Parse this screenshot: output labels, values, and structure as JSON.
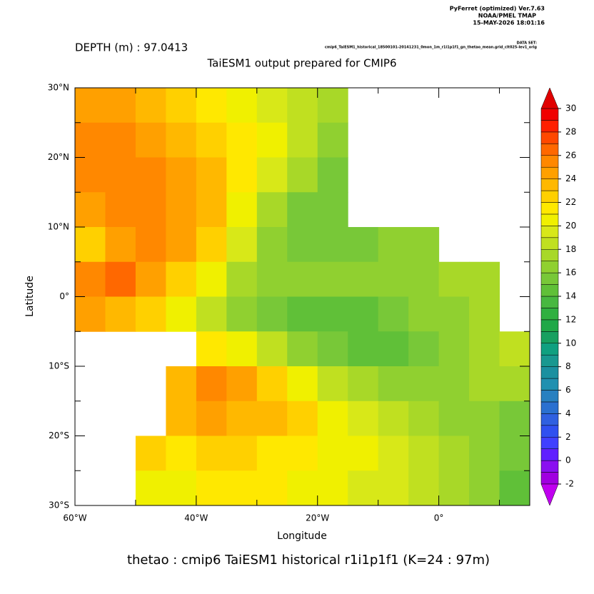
{
  "chart_data": {
    "type": "heatmap",
    "header": [
      "PyFerret (optimized) Ver.7.63",
      "NOAA/PMEL TMAP",
      "15-MAY-2026 18:01:16"
    ],
    "dataset_label": "DATA SET:",
    "dataset": "cmip6_TaiESM1_historical_18500101-20141231_0mon_1m_r1i1p1f1_gn_thetao_mean.grid_clt025-lev1_orig",
    "depth": "DEPTH (m) : 97.0413",
    "title": "TaiESM1 output prepared for CMIP6",
    "xlabel": "Longitude",
    "ylabel": "Latitude",
    "caption": "thetao : cmip6 TaiESM1 historical r1i1p1f1   (K=24 : 97m)",
    "xlim": [
      -60,
      15
    ],
    "ylim": [
      -30,
      30
    ],
    "xticks": [
      {
        "value": -60,
        "label": "60°W"
      },
      {
        "value": -40,
        "label": "40°W"
      },
      {
        "value": -20,
        "label": "20°W"
      },
      {
        "value": 0,
        "label": "0°"
      }
    ],
    "xminor": [
      -50,
      -30,
      -10,
      10
    ],
    "yticks": [
      {
        "value": -30,
        "label": "30°S"
      },
      {
        "value": -20,
        "label": "20°S"
      },
      {
        "value": -10,
        "label": "10°S"
      },
      {
        "value": 0,
        "label": "0°"
      },
      {
        "value": 10,
        "label": "10°N"
      },
      {
        "value": 20,
        "label": "20°N"
      },
      {
        "value": 30,
        "label": "30°N"
      }
    ],
    "yminor": [
      -25,
      -15,
      -5,
      5,
      15,
      25
    ],
    "lons": [
      -57.5,
      -52.5,
      -47.5,
      -42.5,
      -37.5,
      -32.5,
      -27.5,
      -22.5,
      -17.5,
      -12.5,
      -7.5,
      -2.5,
      2.5,
      7.5,
      12.5
    ],
    "lats": [
      27.5,
      22.5,
      17.5,
      12.5,
      7.5,
      2.5,
      -2.5,
      -7.5,
      -12.5,
      -17.5,
      -22.5,
      -27.5
    ],
    "values": [
      [
        24,
        24,
        23,
        22,
        21,
        20,
        19,
        18,
        17,
        null,
        null,
        null,
        null,
        null,
        null
      ],
      [
        25,
        25,
        24,
        23,
        22,
        21,
        20,
        18,
        16,
        null,
        null,
        null,
        null,
        null,
        null
      ],
      [
        25,
        25,
        25,
        24,
        23,
        21,
        19,
        17,
        15,
        null,
        null,
        null,
        null,
        null,
        null
      ],
      [
        24,
        25,
        25,
        24,
        23,
        20,
        17,
        15,
        15,
        null,
        null,
        null,
        null,
        null,
        null
      ],
      [
        22,
        24,
        25,
        24,
        22,
        19,
        16,
        15,
        15,
        15,
        16,
        16,
        null,
        null,
        null
      ],
      [
        25,
        26,
        24,
        22,
        20,
        17,
        16,
        16,
        16,
        16,
        16,
        16,
        17,
        17,
        null
      ],
      [
        24,
        23,
        22,
        20,
        18,
        16,
        15,
        14,
        14,
        14,
        15,
        16,
        16,
        17,
        null
      ],
      [
        null,
        null,
        null,
        null,
        21,
        20,
        18,
        16,
        15,
        14,
        14,
        15,
        16,
        17,
        18
      ],
      [
        null,
        null,
        null,
        23,
        25,
        24,
        22,
        20,
        18,
        17,
        16,
        16,
        16,
        17,
        17
      ],
      [
        null,
        null,
        null,
        23,
        24,
        23,
        23,
        22,
        20,
        19,
        18,
        17,
        16,
        16,
        15
      ],
      [
        null,
        null,
        22,
        21,
        22,
        22,
        21,
        21,
        20,
        20,
        19,
        18,
        17,
        16,
        15
      ],
      [
        null,
        null,
        20,
        20,
        21,
        21,
        21,
        20,
        20,
        19,
        19,
        18,
        17,
        16,
        14
      ]
    ],
    "levels": [
      -2,
      -1,
      0,
      1,
      2,
      3,
      4,
      5,
      6,
      7,
      8,
      9,
      10,
      11,
      12,
      13,
      14,
      15,
      16,
      17,
      18,
      19,
      20,
      21,
      22,
      23,
      24,
      25,
      26,
      27,
      28,
      29,
      30
    ],
    "colors": [
      "#a000e0",
      "#8a10f0",
      "#6020ff",
      "#4040ff",
      "#3050f0",
      "#3060e0",
      "#2a70d0",
      "#2880c0",
      "#2090b0",
      "#1a90a0",
      "#189890",
      "#10a080",
      "#18a060",
      "#20a848",
      "#30b040",
      "#48b840",
      "#60c038",
      "#78c838",
      "#90d030",
      "#a8d828",
      "#c0e020",
      "#d8e818",
      "#f0f000",
      "#ffe800",
      "#ffd000",
      "#ffb800",
      "#ffa000",
      "#ff8800",
      "#ff6800",
      "#ff4800",
      "#ff2000",
      "#f00000"
    ],
    "color_above": "#e00000",
    "color_below": "#c000f0",
    "colorbar_ticks": [
      -2,
      0,
      2,
      4,
      6,
      8,
      10,
      12,
      14,
      16,
      18,
      20,
      22,
      24,
      26,
      28,
      30
    ]
  }
}
